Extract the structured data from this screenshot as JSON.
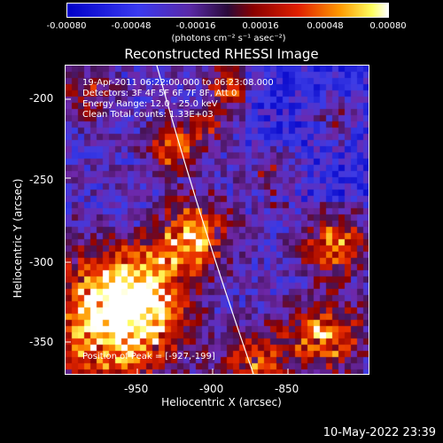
{
  "colorbar": {
    "ticks": [
      "-0.00080",
      "-0.00048",
      "-0.00016",
      "0.00016",
      "0.00048",
      "0.00080"
    ],
    "units": "(photons cm⁻² s⁻¹ asec⁻²)"
  },
  "title": "Reconstructed RHESSI Image",
  "info": {
    "time_range": "19-Apr-2011 06:22:00.000 to 06:23:08.000",
    "detectors": "Detectors: 3F 4F 5F 6F 7F 8F, Att 0",
    "energy_range": "Energy Range: 12.0 - 25.0 keV",
    "clean": "Clean    Total counts: 1.33E+03"
  },
  "peak_label": "Position of Peak = [-927,-199]",
  "xaxis": {
    "label": "Heliocentric X (arcsec)",
    "ticks": [
      "-950",
      "-900",
      "-850"
    ]
  },
  "yaxis": {
    "label": "Heliocentric Y (arcsec)",
    "ticks": [
      "-200",
      "-250",
      "-300",
      "-350"
    ]
  },
  "date_stamp": "10-May-2022 23:39"
}
